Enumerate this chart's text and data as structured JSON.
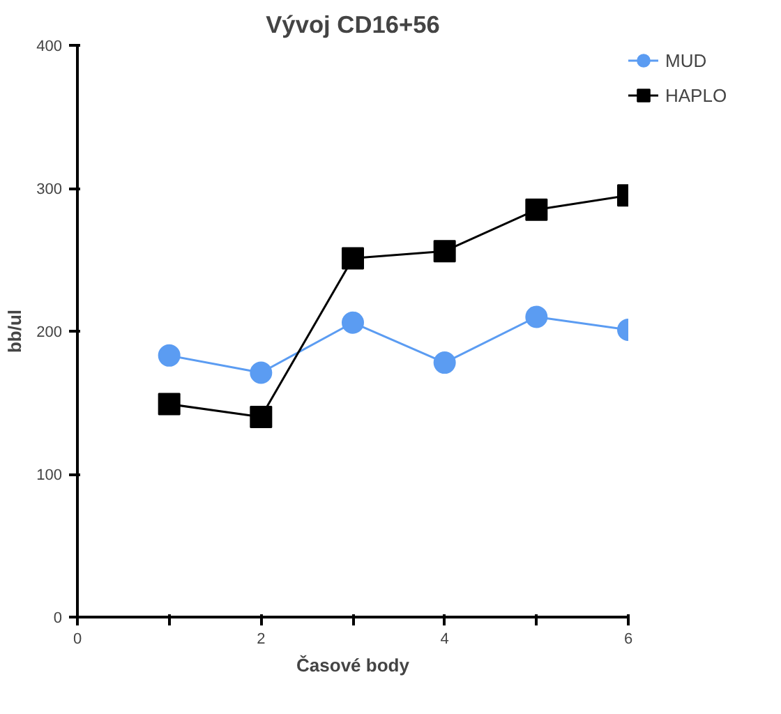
{
  "chart_data": {
    "type": "line",
    "title": "Vývoj CD16+56",
    "xlabel": "Časové body",
    "ylabel": "bb/ul",
    "x": [
      1,
      2,
      3,
      4,
      5,
      6
    ],
    "series": [
      {
        "name": "MUD",
        "color": "#5b9cf2",
        "marker": "circle",
        "values": [
          183,
          171,
          206,
          178,
          210,
          201
        ]
      },
      {
        "name": "HAPLO",
        "color": "#000000",
        "marker": "square",
        "values": [
          149,
          140,
          251,
          256,
          285,
          295
        ]
      }
    ],
    "xlim": [
      0,
      6
    ],
    "ylim": [
      0,
      400
    ],
    "xticks": [
      0,
      {
        "value": 1,
        "label": null
      },
      2,
      {
        "value": 3,
        "label": null
      },
      4,
      {
        "value": 5,
        "label": null
      },
      6
    ],
    "yticks": [
      0,
      100,
      200,
      300,
      400
    ],
    "grid": false,
    "legend": "top right"
  }
}
